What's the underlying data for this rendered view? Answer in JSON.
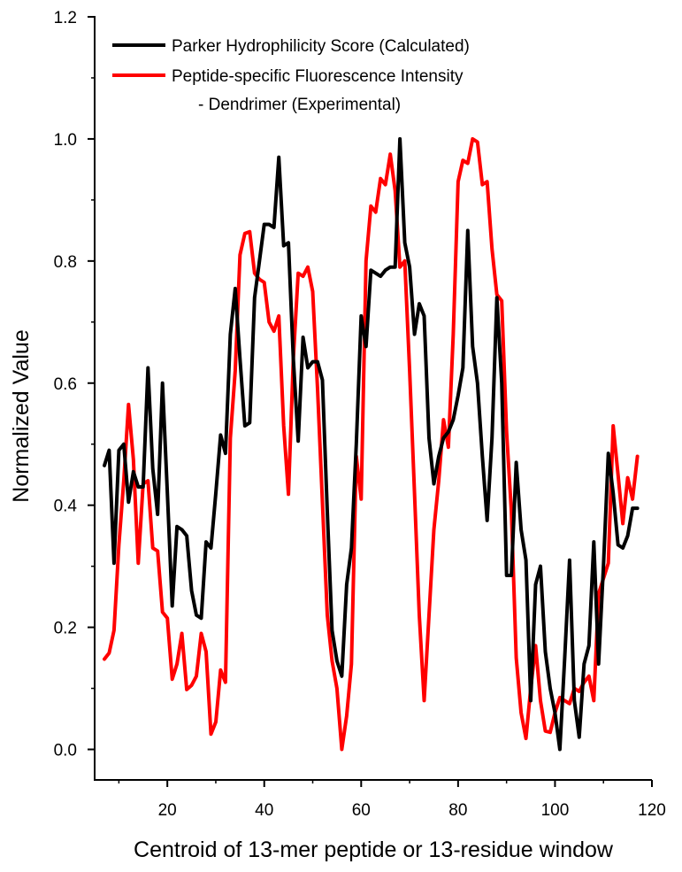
{
  "chart_data": {
    "type": "line",
    "title": "",
    "xlabel": "Centroid of 13-mer peptide or 13-residue window",
    "ylabel": "Normalized Value",
    "xlim": [
      5,
      120
    ],
    "ylim": [
      -0.05,
      1.2
    ],
    "xticks": [
      20,
      40,
      60,
      80,
      100,
      120
    ],
    "yticks": [
      0.0,
      0.2,
      0.4,
      0.6,
      0.8,
      1.0,
      1.2
    ],
    "xtick_labels": [
      "20",
      "40",
      "60",
      "80",
      "100",
      "120"
    ],
    "ytick_labels": [
      "0.0",
      "0.2",
      "0.4",
      "0.6",
      "0.8",
      "1.0",
      "1.2"
    ],
    "grid": false,
    "legend_position": "top-left",
    "series": [
      {
        "name": "Parker Hydrophilicity Score (Calculated)",
        "color": "#000000",
        "x": [
          7,
          8,
          9,
          10,
          11,
          12,
          13,
          14,
          15,
          16,
          17,
          18,
          19,
          20,
          21,
          22,
          23,
          24,
          25,
          26,
          27,
          28,
          29,
          30,
          31,
          32,
          33,
          34,
          35,
          36,
          37,
          38,
          39,
          40,
          41,
          42,
          43,
          44,
          45,
          46,
          47,
          48,
          49,
          50,
          51,
          52,
          53,
          54,
          55,
          56,
          57,
          58,
          59,
          60,
          61,
          62,
          63,
          64,
          65,
          66,
          67,
          68,
          69,
          70,
          71,
          72,
          73,
          74,
          75,
          76,
          77,
          78,
          79,
          80,
          81,
          82,
          83,
          84,
          85,
          86,
          87,
          88,
          89,
          90,
          91,
          92,
          93,
          94,
          95,
          96,
          97,
          98,
          99,
          100,
          101,
          102,
          103,
          104,
          105,
          106,
          107,
          108,
          109,
          110,
          111,
          112,
          113,
          114,
          115,
          116,
          117
        ],
        "values": [
          0.465,
          0.49,
          0.305,
          0.49,
          0.5,
          0.405,
          0.455,
          0.43,
          0.43,
          0.625,
          0.46,
          0.385,
          0.6,
          0.42,
          0.235,
          0.365,
          0.36,
          0.35,
          0.26,
          0.22,
          0.215,
          0.34,
          0.33,
          0.42,
          0.515,
          0.485,
          0.68,
          0.755,
          0.64,
          0.53,
          0.535,
          0.74,
          0.8,
          0.86,
          0.86,
          0.855,
          0.97,
          0.825,
          0.83,
          0.64,
          0.505,
          0.675,
          0.625,
          0.635,
          0.635,
          0.605,
          0.39,
          0.195,
          0.145,
          0.12,
          0.27,
          0.33,
          0.5,
          0.71,
          0.66,
          0.785,
          0.78,
          0.775,
          0.785,
          0.79,
          0.79,
          1.0,
          0.83,
          0.79,
          0.68,
          0.73,
          0.71,
          0.51,
          0.435,
          0.48,
          0.51,
          0.52,
          0.54,
          0.58,
          0.625,
          0.85,
          0.66,
          0.6,
          0.48,
          0.375,
          0.51,
          0.74,
          0.6,
          0.285,
          0.285,
          0.47,
          0.36,
          0.31,
          0.08,
          0.27,
          0.3,
          0.16,
          0.1,
          0.06,
          0.0,
          0.15,
          0.31,
          0.08,
          0.02,
          0.14,
          0.17,
          0.34,
          0.14,
          0.3,
          0.485,
          0.42,
          0.335,
          0.33,
          0.35,
          0.395,
          0.395
        ]
      },
      {
        "name": "Peptide-specific Fluorescence Intensity - Dendrimer (Experimental)",
        "color": "#ff0000",
        "x": [
          7,
          8,
          9,
          10,
          11,
          12,
          13,
          14,
          15,
          16,
          17,
          18,
          19,
          20,
          21,
          22,
          23,
          24,
          25,
          26,
          27,
          28,
          29,
          30,
          31,
          32,
          33,
          34,
          35,
          36,
          37,
          38,
          39,
          40,
          41,
          42,
          43,
          44,
          45,
          46,
          47,
          48,
          49,
          50,
          51,
          52,
          53,
          54,
          55,
          56,
          57,
          58,
          59,
          60,
          61,
          62,
          63,
          64,
          65,
          66,
          67,
          68,
          69,
          70,
          71,
          72,
          73,
          74,
          75,
          76,
          77,
          78,
          79,
          80,
          81,
          82,
          83,
          84,
          85,
          86,
          87,
          88,
          89,
          90,
          91,
          92,
          93,
          94,
          95,
          96,
          97,
          98,
          99,
          100,
          101,
          102,
          103,
          104,
          105,
          106,
          107,
          108,
          109,
          110,
          111,
          112,
          113,
          114,
          115,
          116,
          117
        ],
        "values": [
          0.148,
          0.158,
          0.195,
          0.335,
          0.44,
          0.565,
          0.475,
          0.305,
          0.435,
          0.44,
          0.33,
          0.325,
          0.225,
          0.215,
          0.115,
          0.14,
          0.19,
          0.098,
          0.105,
          0.12,
          0.19,
          0.16,
          0.025,
          0.045,
          0.13,
          0.11,
          0.51,
          0.62,
          0.81,
          0.845,
          0.848,
          0.78,
          0.77,
          0.765,
          0.7,
          0.685,
          0.71,
          0.53,
          0.418,
          0.64,
          0.78,
          0.775,
          0.79,
          0.75,
          0.59,
          0.405,
          0.22,
          0.145,
          0.1,
          0.0,
          0.055,
          0.14,
          0.48,
          0.41,
          0.8,
          0.89,
          0.88,
          0.935,
          0.925,
          0.975,
          0.915,
          0.79,
          0.8,
          0.62,
          0.42,
          0.22,
          0.08,
          0.22,
          0.36,
          0.44,
          0.54,
          0.495,
          0.68,
          0.93,
          0.965,
          0.96,
          1.0,
          0.995,
          0.925,
          0.93,
          0.82,
          0.745,
          0.735,
          0.52,
          0.39,
          0.15,
          0.06,
          0.018,
          0.1,
          0.17,
          0.08,
          0.03,
          0.028,
          0.06,
          0.085,
          0.08,
          0.075,
          0.1,
          0.095,
          0.11,
          0.12,
          0.08,
          0.255,
          0.28,
          0.305,
          0.53,
          0.45,
          0.37,
          0.445,
          0.41,
          0.48
        ]
      }
    ]
  },
  "legend": {
    "entries": [
      {
        "line1": "Parker Hydrophilicity Score (Calculated)",
        "line2": ""
      },
      {
        "line1": "Peptide-specific Fluorescence Intensity",
        "line2": "- Dendrimer (Experimental)"
      }
    ]
  }
}
